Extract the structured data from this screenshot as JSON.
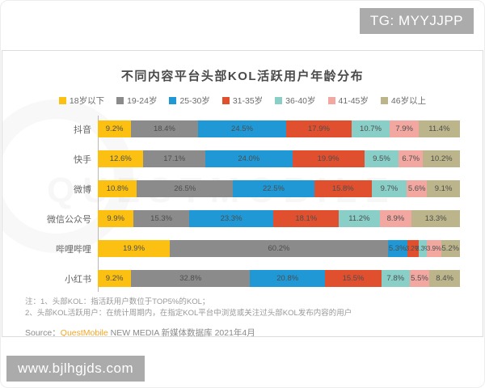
{
  "badges": {
    "tg": "TG: MYYJJPP",
    "site": "www.bjlhgjds.com"
  },
  "watermark_text": "QUESTMOBILE",
  "notes": {
    "line1": "注：1、头部KOL：指活跃用户数位于TOP5%的KOL；",
    "line2": "2、头部KOL活跃用户：在统计周期内，在指定KOL平台中浏览或关注过头部KOL发布内容的用户"
  },
  "source": {
    "prefix": "Source：",
    "brand": "QuestMobile",
    "rest": " NEW MEDIA 新媒体数据库 2021年4月"
  },
  "chart_data": {
    "type": "bar",
    "subtype": "horizontal-stacked-percentage",
    "title": "不同内容平台头部KOL活跃用户年龄分布",
    "value_format": "percent-one-decimal",
    "xlim": [
      0,
      100
    ],
    "legend_position": "top",
    "grid": false,
    "categories": [
      "抖音",
      "快手",
      "微博",
      "微信公众号",
      "哔哩哔哩",
      "小红书"
    ],
    "series": [
      {
        "name": "18岁以下",
        "color": "#FBC011",
        "values": [
          9.2,
          12.6,
          10.8,
          9.9,
          19.9,
          9.2
        ]
      },
      {
        "name": "19-24岁",
        "color": "#8B8B8B",
        "values": [
          18.4,
          17.1,
          26.5,
          15.3,
          60.2,
          32.8
        ]
      },
      {
        "name": "25-30岁",
        "color": "#2098D5",
        "values": [
          24.5,
          24.0,
          22.5,
          23.3,
          5.3,
          20.8
        ]
      },
      {
        "name": "31-35岁",
        "color": "#E0502F",
        "values": [
          17.9,
          19.9,
          15.8,
          18.1,
          3.2,
          15.5
        ]
      },
      {
        "name": "36-40岁",
        "color": "#89CFC8",
        "values": [
          10.7,
          9.5,
          9.7,
          11.2,
          2.3,
          7.8
        ]
      },
      {
        "name": "41-45岁",
        "color": "#F2A8A1",
        "values": [
          7.9,
          6.7,
          5.6,
          8.9,
          3.9,
          5.5
        ]
      },
      {
        "name": "46岁以上",
        "color": "#BCB58B",
        "values": [
          11.4,
          10.2,
          9.1,
          13.3,
          5.2,
          8.4
        ]
      }
    ]
  }
}
